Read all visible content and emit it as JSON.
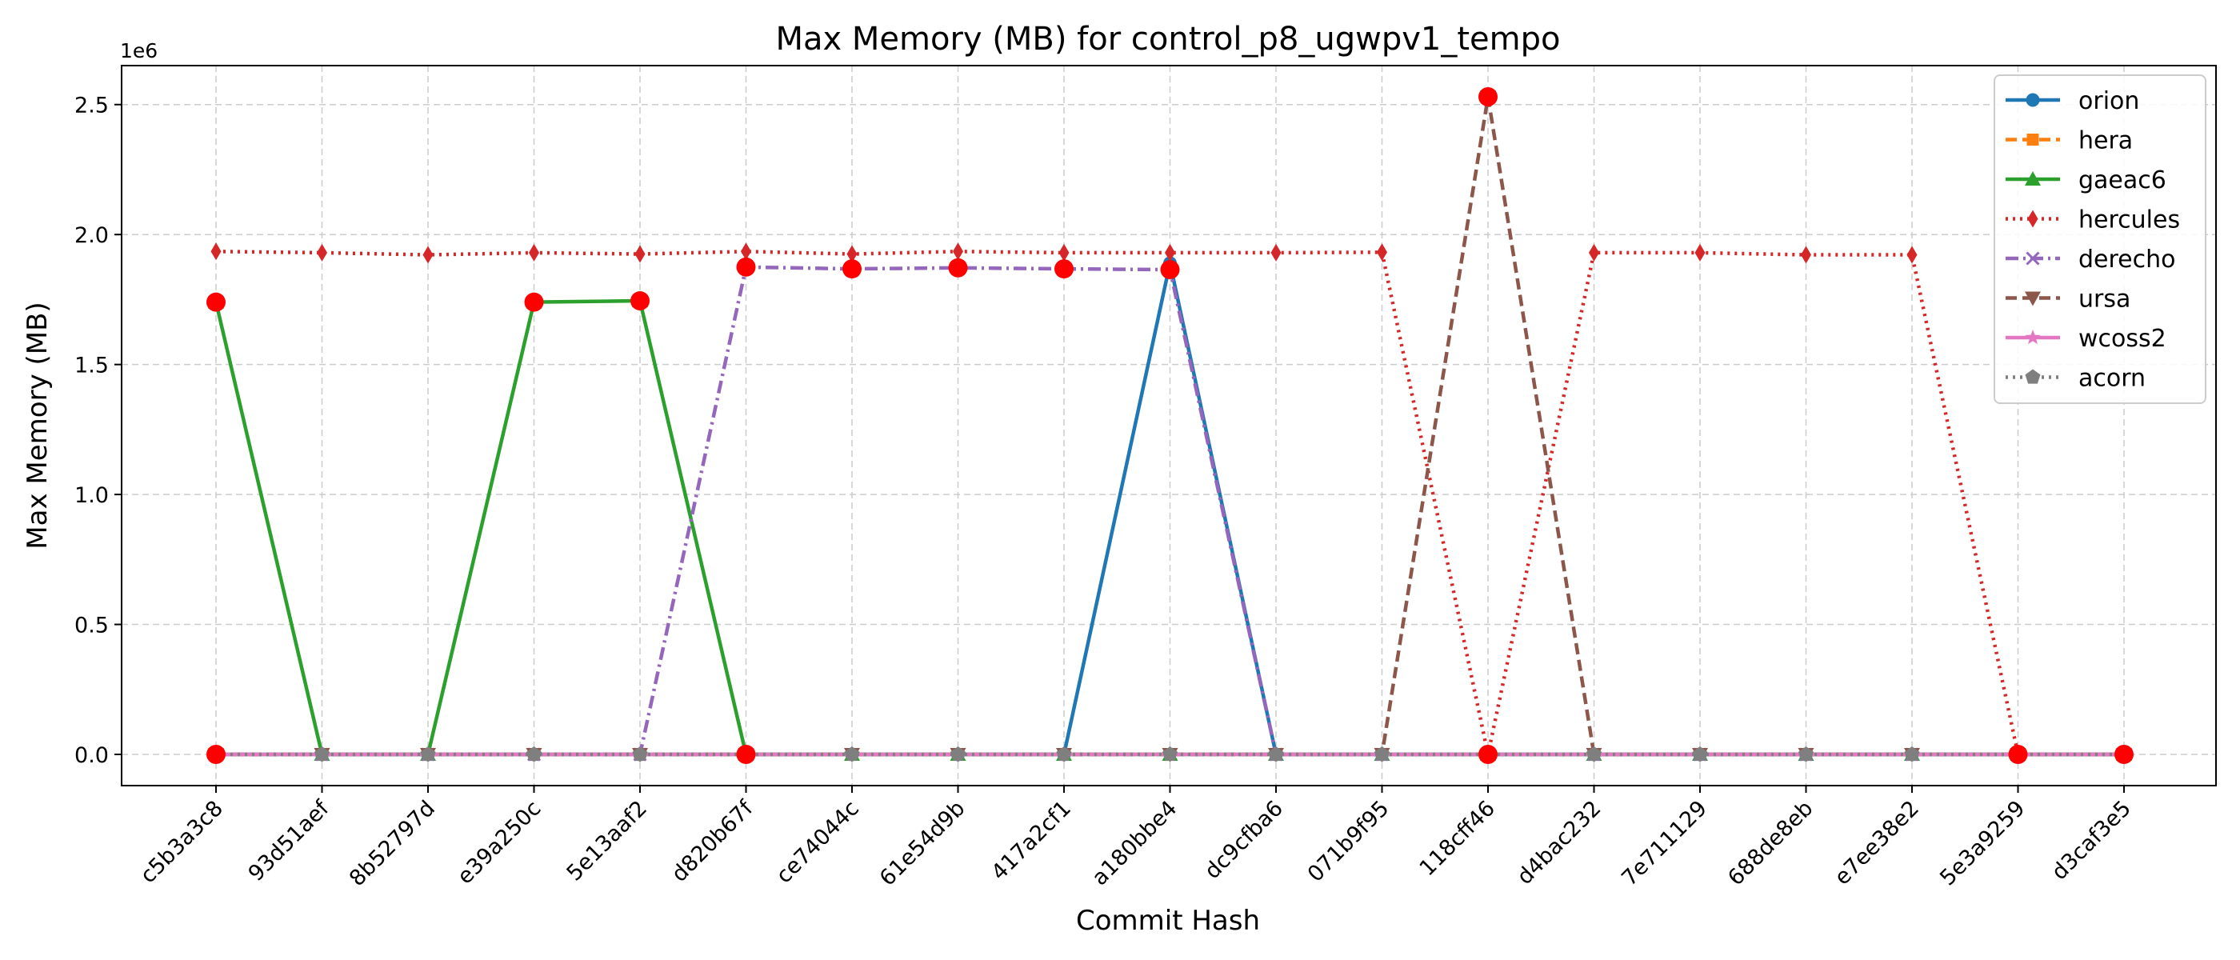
{
  "chart_data": {
    "type": "line",
    "title": "Max Memory (MB) for control_p8_ugwpv1_tempo",
    "xlabel": "Commit Hash",
    "ylabel": "Max Memory (MB)",
    "y_multiplier_label": "1e6",
    "ylim": [
      -120000,
      2650000
    ],
    "yticks": [
      0,
      500000,
      1000000,
      1500000,
      2000000,
      2500000
    ],
    "ytick_labels": [
      "0.0",
      "0.5",
      "1.0",
      "1.5",
      "2.0",
      "2.5"
    ],
    "grid": true,
    "legend_position": "top-right",
    "categories": [
      "c5b3a3c8",
      "93d51aef",
      "8b52797d",
      "e39a250c",
      "5e13aaf2",
      "d820b67f",
      "ce74044c",
      "61e54d9b",
      "417a2cf1",
      "a180bbe4",
      "dc9cfba6",
      "071b9f95",
      "118cff46",
      "d4bac232",
      "7e711129",
      "688de8eb",
      "e7ee38e2",
      "5e3a9259",
      "d3caf3e5"
    ],
    "series": [
      {
        "name": "orion",
        "color": "#1f77b4",
        "dash": "solid",
        "marker": "circle",
        "values": [
          0,
          0,
          0,
          0,
          0,
          0,
          0,
          0,
          0,
          1890000,
          0,
          0,
          0,
          0,
          0,
          0,
          0,
          0,
          0
        ]
      },
      {
        "name": "hera",
        "color": "#ff7f0e",
        "dash": "dashed",
        "marker": "square",
        "values": [
          0,
          0,
          0,
          0,
          0,
          0,
          0,
          0,
          0,
          0,
          0,
          0,
          0,
          0,
          0,
          0,
          0,
          0,
          0
        ]
      },
      {
        "name": "gaeac6",
        "color": "#2ca02c",
        "dash": "solid",
        "marker": "triangle-up",
        "values": [
          1740000,
          0,
          0,
          1740000,
          1745000,
          0,
          0,
          0,
          0,
          0,
          0,
          0,
          0,
          0,
          0,
          0,
          0,
          0,
          0
        ]
      },
      {
        "name": "hercules",
        "color": "#d62728",
        "dash": "dotted",
        "marker": "diamond",
        "values": [
          1935000,
          1930000,
          1922000,
          1930000,
          1925000,
          1935000,
          1925000,
          1935000,
          1930000,
          1930000,
          1930000,
          1932000,
          0,
          1930000,
          1930000,
          1922000,
          1922000,
          0,
          0
        ]
      },
      {
        "name": "derecho",
        "color": "#9467bd",
        "dash": "dashdot",
        "marker": "x",
        "values": [
          0,
          0,
          0,
          0,
          0,
          1875000,
          1868000,
          1872000,
          1868000,
          1865000,
          0,
          0,
          0,
          0,
          0,
          0,
          0,
          0,
          0
        ]
      },
      {
        "name": "ursa",
        "color": "#8c564b",
        "dash": "dashed",
        "marker": "triangle-down",
        "values": [
          0,
          0,
          0,
          0,
          0,
          0,
          0,
          0,
          0,
          0,
          0,
          0,
          2530000,
          0,
          0,
          0,
          0,
          0,
          0
        ]
      },
      {
        "name": "wcoss2",
        "color": "#e377c2",
        "dash": "solid",
        "marker": "star",
        "values": [
          0,
          0,
          0,
          0,
          0,
          0,
          0,
          0,
          0,
          0,
          0,
          0,
          0,
          0,
          0,
          0,
          0,
          0,
          0
        ]
      },
      {
        "name": "acorn",
        "color": "#7f7f7f",
        "dash": "dotted",
        "marker": "pentagon",
        "values": [
          0,
          0,
          0,
          0,
          0,
          0,
          0,
          0,
          0,
          0,
          0,
          0,
          0,
          0,
          0,
          0,
          0,
          0,
          0
        ]
      }
    ],
    "highlight_color": "#ff0000",
    "highlights": [
      {
        "category": "c5b3a3c8",
        "value": 1740000
      },
      {
        "category": "c5b3a3c8",
        "value": 0
      },
      {
        "category": "e39a250c",
        "value": 1740000
      },
      {
        "category": "5e13aaf2",
        "value": 1745000
      },
      {
        "category": "d820b67f",
        "value": 1875000
      },
      {
        "category": "d820b67f",
        "value": 0
      },
      {
        "category": "ce74044c",
        "value": 1868000
      },
      {
        "category": "61e54d9b",
        "value": 1872000
      },
      {
        "category": "417a2cf1",
        "value": 1868000
      },
      {
        "category": "a180bbe4",
        "value": 1865000
      },
      {
        "category": "118cff46",
        "value": 2530000
      },
      {
        "category": "118cff46",
        "value": 0
      },
      {
        "category": "5e3a9259",
        "value": 0
      },
      {
        "category": "d3caf3e5",
        "value": 0
      }
    ]
  }
}
